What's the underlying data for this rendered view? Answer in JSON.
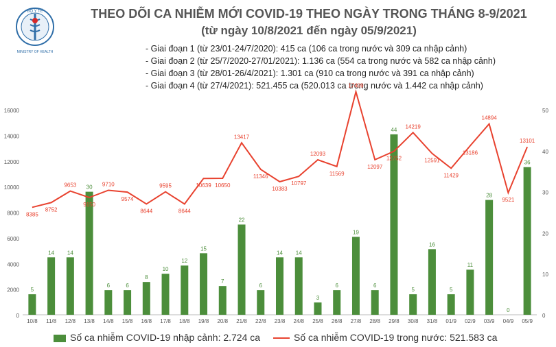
{
  "header": {
    "title": "THEO DÕI CA NHIỄM MỚI COVID-19 THEO NGÀY TRONG THÁNG 8-9/2021",
    "subtitle": "(từ ngày 10/8/2021 đến ngày 05/9/2021)",
    "logo_text_top": "BỘ Y TẾ",
    "logo_text_bottom": "MINISTRY OF HEALTH"
  },
  "notes": [
    "- Giai đoạn 1 (từ 23/01-24/7/2020): 415 ca (106 ca trong nước và 309 ca nhập cảnh)",
    "- Giai đoạn 2 (từ 25/7/2020-27/01/2021): 1.136 ca (554 ca trong nước và 582 ca nhập cảnh)",
    "- Giai đoạn 3 (từ 28/01-26/4/2021): 1.301 ca (910 ca trong nước và 391 ca nhập cảnh)",
    "- Giai đoạn 4 (từ 27/4/2021): 521.455 ca (520.013 ca trong nước và 1.442 ca nhập cảnh)"
  ],
  "legend": {
    "bar_label": "Số ca nhiễm COVID-19 nhập cảnh: 2.724 ca",
    "line_label": "Số ca nhiễm COVID-19 trong nước: 521.583 ca"
  },
  "colors": {
    "bar": "#4c8e3b",
    "line": "#e8422f",
    "axis_text": "#555555"
  },
  "chart_data": {
    "type": "bar",
    "categories": [
      "10/8",
      "11/8",
      "12/8",
      "13/8",
      "14/8",
      "15/8",
      "16/8",
      "17/8",
      "18/8",
      "19/8",
      "20/8",
      "21/8",
      "22/8",
      "23/8",
      "24/8",
      "25/8",
      "26/8",
      "27/8",
      "28/8",
      "29/8",
      "30/8",
      "31/8",
      "01/9",
      "02/9",
      "03/9",
      "04/9",
      "05/9"
    ],
    "series": [
      {
        "name": "Số ca nhiễm COVID-19 nhập cảnh: 2.724 ca",
        "type": "bar",
        "axis": "right",
        "values": [
          5,
          14,
          14,
          30,
          6,
          6,
          8,
          10,
          12,
          15,
          7,
          22,
          6,
          14,
          14,
          3,
          6,
          19,
          6,
          44,
          5,
          16,
          5,
          11,
          28,
          0,
          36
        ]
      },
      {
        "name": "Số ca nhiễm COVID-19 trong nước: 521.583 ca",
        "type": "line",
        "axis": "left",
        "values": [
          8385,
          8752,
          9653,
          9150,
          9710,
          9574,
          8644,
          9595,
          8644,
          10639,
          10650,
          13417,
          11346,
          10383,
          10797,
          12093,
          11569,
          17409,
          12097,
          12752,
          14219,
          12591,
          11429,
          13186,
          14894,
          9521,
          13101
        ]
      }
    ],
    "left_axis": {
      "ticks": [
        0,
        2000,
        4000,
        6000,
        8000,
        10000,
        12000,
        14000,
        16000
      ],
      "ylim": [
        0,
        16000
      ]
    },
    "right_axis": {
      "ticks": [
        0,
        10,
        20,
        30,
        40,
        50
      ],
      "ylim": [
        0,
        50
      ]
    },
    "grid": false,
    "legend_position": "bottom"
  }
}
